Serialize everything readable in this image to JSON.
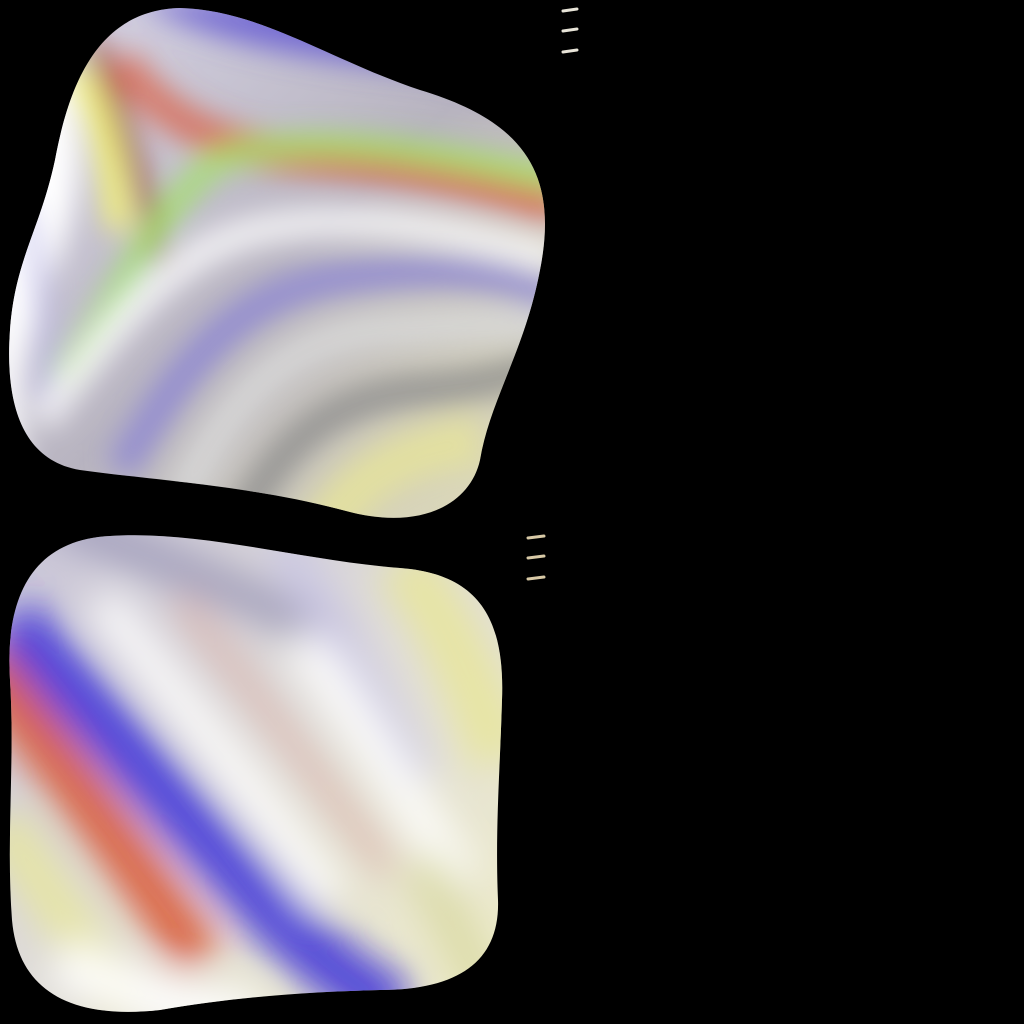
{
  "canvas": {
    "background": "#000000"
  },
  "tiles": [
    {
      "name": "upper-iridescent-tile",
      "palette": [
        "#ffffff",
        "#5a4fd0",
        "#d9664e",
        "#9fe85c",
        "#e6e39a",
        "#8a8a8a",
        "#b9b5e8",
        "#e84c2c",
        "#f2f07a"
      ]
    },
    {
      "name": "lower-iridescent-tile",
      "palette": [
        "#ffffff",
        "#3b2fd9",
        "#d94f2a",
        "#e8e6a0",
        "#9c98b8",
        "#c9c6e6",
        "#d8d8d8",
        "#f0eec0"
      ]
    }
  ],
  "handles": [
    {
      "icon": "drag-handle-icon",
      "color": "#e8e4d8"
    },
    {
      "icon": "drag-handle-icon",
      "color": "#d8c9a6"
    }
  ]
}
